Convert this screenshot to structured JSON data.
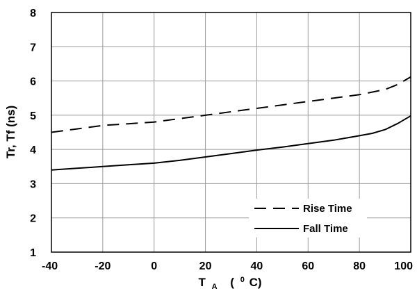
{
  "chart_data": {
    "type": "line",
    "ylabel": "Tr, Tf (ns)",
    "xlabel": {
      "main": "T",
      "sub": "A",
      "unit_open": "(",
      "unit_sup": "0",
      "unit_close": "C)"
    },
    "xlim": [
      -40,
      100
    ],
    "ylim": [
      1,
      8
    ],
    "xticks": [
      -40,
      -20,
      0,
      20,
      40,
      60,
      80,
      100
    ],
    "yticks": [
      1,
      2,
      3,
      4,
      5,
      6,
      7,
      8
    ],
    "grid": true,
    "legend_position": "bottom-right",
    "series": [
      {
        "name": "Rise Time",
        "style": "dashed",
        "color": "#000000",
        "x": [
          -40,
          -30,
          -20,
          -10,
          0,
          10,
          20,
          30,
          40,
          50,
          60,
          70,
          80,
          90,
          95,
          100
        ],
        "y": [
          4.5,
          4.6,
          4.7,
          4.75,
          4.8,
          4.9,
          5.0,
          5.1,
          5.2,
          5.3,
          5.4,
          5.5,
          5.6,
          5.75,
          5.9,
          6.12
        ]
      },
      {
        "name": "Fall Time",
        "style": "solid",
        "color": "#000000",
        "x": [
          -40,
          -30,
          -20,
          -10,
          0,
          10,
          20,
          30,
          40,
          50,
          60,
          70,
          80,
          85,
          90,
          95,
          100
        ],
        "y": [
          3.4,
          3.45,
          3.5,
          3.55,
          3.6,
          3.68,
          3.78,
          3.88,
          3.98,
          4.07,
          4.17,
          4.27,
          4.4,
          4.47,
          4.58,
          4.76,
          4.98
        ]
      }
    ]
  }
}
